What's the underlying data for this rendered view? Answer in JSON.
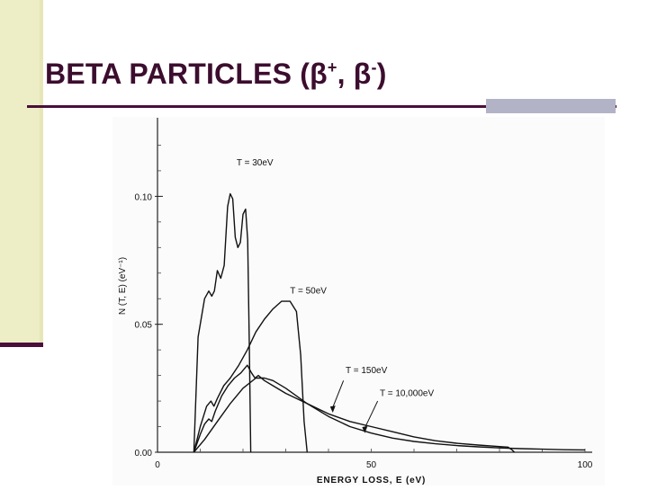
{
  "slide": {
    "title_main": "BETA PARTICLES (β",
    "title_sup1": "+",
    "title_sep": ", β",
    "title_sup2": "-",
    "title_end": ")",
    "colors": {
      "title": "#3c0d2f",
      "accent": "#4a0f3a",
      "side_bar": "#ededc6",
      "rule_block": "#b3b3c7"
    }
  },
  "chart_data": {
    "type": "line",
    "title": "",
    "xlabel": "ENERGY  LOSS, E (eV)",
    "ylabel": "N (T, E)  (eV⁻¹)",
    "xlim": [
      0,
      100
    ],
    "ylim": [
      0,
      0.13
    ],
    "x_ticks": [
      0,
      50,
      100
    ],
    "x_tick_labels": [
      "0",
      "50",
      "100"
    ],
    "y_ticks": [
      0,
      0.05,
      0.1
    ],
    "y_tick_labels": [
      "0.00",
      "0.05",
      "0.10"
    ],
    "grid": false,
    "legend": "none (curves labeled directly)",
    "series": [
      {
        "name": "T = 30eV",
        "x": [
          8.5,
          9.5,
          11,
          12,
          12.7,
          13.3,
          14,
          14.8,
          15.6,
          16.4,
          17,
          17.6,
          18.2,
          18.8,
          19.4,
          20,
          20.6,
          21.1,
          21.5,
          21.8
        ],
        "y": [
          0,
          0.045,
          0.06,
          0.063,
          0.061,
          0.063,
          0.071,
          0.068,
          0.073,
          0.096,
          0.101,
          0.099,
          0.084,
          0.08,
          0.082,
          0.093,
          0.095,
          0.083,
          0.04,
          0
        ]
      },
      {
        "name": "T = 50eV",
        "x": [
          8.5,
          10,
          11.5,
          12.5,
          13.2,
          14,
          15.5,
          17,
          19,
          21,
          23,
          25,
          27,
          29,
          31,
          32.5,
          33.5,
          34.3,
          35
        ],
        "y": [
          0,
          0.01,
          0.018,
          0.02,
          0.018,
          0.021,
          0.026,
          0.029,
          0.034,
          0.04,
          0.047,
          0.052,
          0.056,
          0.059,
          0.059,
          0.055,
          0.038,
          0.012,
          0
        ]
      },
      {
        "name": "T = 150eV",
        "x": [
          8.5,
          10,
          11,
          12,
          12.7,
          13.5,
          15,
          16.5,
          18,
          19.5,
          21,
          22,
          22.8,
          23.6,
          25,
          27,
          30,
          35,
          40,
          45,
          50,
          55,
          60,
          65,
          70,
          75,
          80,
          82,
          83,
          83.5
        ],
        "y": [
          0,
          0.007,
          0.011,
          0.013,
          0.012,
          0.016,
          0.022,
          0.026,
          0.029,
          0.031,
          0.034,
          0.031,
          0.029,
          0.03,
          0.028,
          0.026,
          0.023,
          0.019,
          0.015,
          0.012,
          0.01,
          0.008,
          0.006,
          0.0045,
          0.0035,
          0.0028,
          0.0022,
          0.002,
          0.0008,
          0
        ]
      },
      {
        "name": "T = 10,000eV",
        "x": [
          8.5,
          11,
          14,
          17,
          20,
          23,
          25,
          27,
          30,
          35,
          40,
          45,
          50,
          55,
          60,
          65,
          70,
          75,
          80,
          85,
          90,
          95,
          100
        ],
        "y": [
          0,
          0.005,
          0.012,
          0.019,
          0.025,
          0.029,
          0.029,
          0.028,
          0.025,
          0.019,
          0.014,
          0.01,
          0.0075,
          0.0055,
          0.0042,
          0.0033,
          0.0026,
          0.0021,
          0.0017,
          0.0014,
          0.0012,
          0.001,
          0.0009
        ]
      }
    ]
  }
}
